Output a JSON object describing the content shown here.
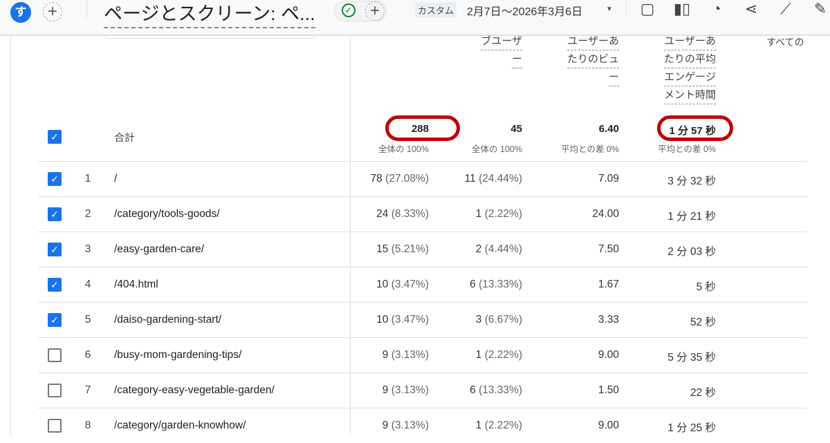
{
  "topbar": {
    "avatar_letter": "す",
    "title": "ページとスクリーン: ペ...",
    "date_preset": "カスタム",
    "date_range": "2月7日〜2026年3月6日",
    "tools": [
      {
        "icon": "note-icon",
        "glyph": "▢"
      },
      {
        "icon": "compare-icon",
        "glyph": "▮▯"
      },
      {
        "icon": "insights-icon",
        "glyph": "◔"
      },
      {
        "icon": "share-icon",
        "glyph": "⋖"
      },
      {
        "icon": "sparkle-trend-icon",
        "glyph": "⟋"
      },
      {
        "icon": "edit-icon",
        "glyph": "✎"
      }
    ]
  },
  "columns": {
    "col2": [
      "ブユーザ",
      "ー"
    ],
    "col3": [
      "ユーザーあ",
      "たりのビュ",
      "ー"
    ],
    "col4": [
      "ユーザーあ",
      "たりの平均",
      "エンゲージ",
      "メント時間"
    ],
    "col5": "すべての"
  },
  "totals": {
    "label": "合計",
    "views": "288",
    "views_sub": "全体の 100%",
    "users": "45",
    "users_sub": "全体の 100%",
    "views_per_user": "6.40",
    "vpu_sub": "平均との差 0%",
    "engagement": "1 分 57 秒",
    "eng_sub": "平均との差 0%"
  },
  "highlight_color": "#c00000",
  "rows": [
    {
      "n": "1",
      "page": "/",
      "views": "78",
      "vp": "(27.08%)",
      "users": "11",
      "up": "(24.44%)",
      "vpu": "7.09",
      "eng": "3 分 32 秒",
      "checked": true
    },
    {
      "n": "2",
      "page": "/category/tools-goods/",
      "views": "24",
      "vp": "(8.33%)",
      "users": "1",
      "up": "(2.22%)",
      "vpu": "24.00",
      "eng": "1 分 21 秒",
      "checked": true
    },
    {
      "n": "3",
      "page": "/easy-garden-care/",
      "views": "15",
      "vp": "(5.21%)",
      "users": "2",
      "up": "(4.44%)",
      "vpu": "7.50",
      "eng": "2 分 03 秒",
      "checked": true
    },
    {
      "n": "4",
      "page": "/404.html",
      "views": "10",
      "vp": "(3.47%)",
      "users": "6",
      "up": "(13.33%)",
      "vpu": "1.67",
      "eng": "5 秒",
      "checked": true
    },
    {
      "n": "5",
      "page": "/daiso-gardening-start/",
      "views": "10",
      "vp": "(3.47%)",
      "users": "3",
      "up": "(6.67%)",
      "vpu": "3.33",
      "eng": "52 秒",
      "checked": true
    },
    {
      "n": "6",
      "page": "/busy-mom-gardening-tips/",
      "views": "9",
      "vp": "(3.13%)",
      "users": "1",
      "up": "(2.22%)",
      "vpu": "9.00",
      "eng": "5 分 35 秒",
      "checked": false
    },
    {
      "n": "7",
      "page": "/category-easy-vegetable-garden/",
      "views": "9",
      "vp": "(3.13%)",
      "users": "6",
      "up": "(13.33%)",
      "vpu": "1.50",
      "eng": "22 秒",
      "checked": false
    },
    {
      "n": "8",
      "page": "/category/garden-knowhow/",
      "views": "9",
      "vp": "(3.13%)",
      "users": "1",
      "up": "(2.22%)",
      "vpu": "9.00",
      "eng": "1 分 25 秒",
      "checked": false
    }
  ]
}
